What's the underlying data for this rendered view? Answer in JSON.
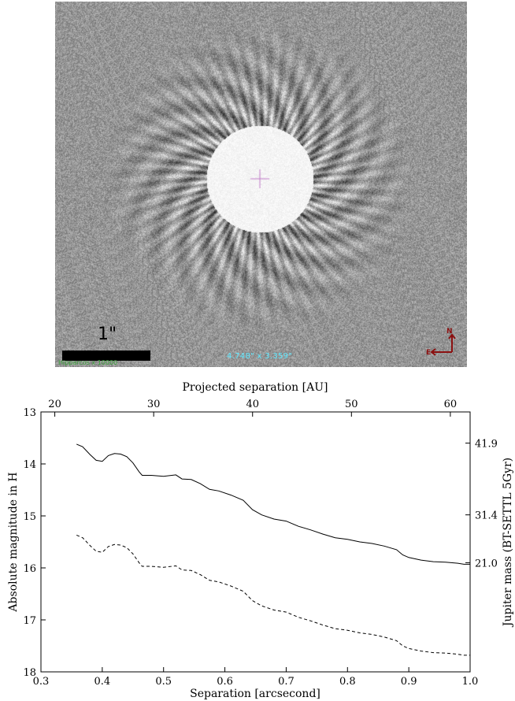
{
  "image_panel": {
    "scale_label": "1\"",
    "coordinate_readout": "4.748\" x 3.359\"",
    "faint_label": "Hipparcos x 10000",
    "compass": {
      "north": "N",
      "east": "E"
    }
  },
  "chart_data": {
    "type": "line",
    "xlabel": "Separation [arcsecond]",
    "ylabel": "Absolute magnitude in H",
    "top_xlabel": "Projected separation [AU]",
    "right_ylabel": "Jupiter mass (BT-SETTL 5Gyr)",
    "xlim": [
      0.3,
      1.0
    ],
    "ylim": [
      18,
      13
    ],
    "x_ticks": [
      "0.3",
      "0.4",
      "0.5",
      "0.6",
      "0.7",
      "0.8",
      "0.9",
      "1.0"
    ],
    "y_ticks": [
      "13",
      "14",
      "15",
      "16",
      "17",
      "18"
    ],
    "top_ticks": [
      {
        "au": 20,
        "label": "20"
      },
      {
        "au": 30,
        "label": "30"
      },
      {
        "au": 40,
        "label": "40"
      },
      {
        "au": 50,
        "label": "50"
      },
      {
        "au": 60,
        "label": "60"
      }
    ],
    "au_per_arcsec": 62.0,
    "right_ticks": [
      {
        "mag": 13.6,
        "label": "41.9"
      },
      {
        "mag": 14.98,
        "label": "31.4"
      },
      {
        "mag": 15.9,
        "label": "21.0"
      }
    ],
    "series": [
      {
        "style": "solid",
        "x": [
          0.358,
          0.368,
          0.38,
          0.39,
          0.4,
          0.41,
          0.42,
          0.43,
          0.44,
          0.45,
          0.46,
          0.465,
          0.48,
          0.5,
          0.52,
          0.53,
          0.545,
          0.56,
          0.575,
          0.59,
          0.61,
          0.63,
          0.645,
          0.66,
          0.68,
          0.7,
          0.72,
          0.74,
          0.76,
          0.78,
          0.8,
          0.82,
          0.84,
          0.86,
          0.88,
          0.89,
          0.9,
          0.92,
          0.94,
          0.96,
          0.98,
          0.99,
          1.0
        ],
        "y": [
          13.62,
          13.67,
          13.82,
          13.93,
          13.95,
          13.84,
          13.8,
          13.81,
          13.86,
          13.98,
          14.15,
          14.22,
          14.22,
          14.24,
          14.21,
          14.29,
          14.3,
          14.38,
          14.49,
          14.52,
          14.6,
          14.7,
          14.88,
          14.98,
          15.06,
          15.1,
          15.2,
          15.27,
          15.35,
          15.42,
          15.45,
          15.5,
          15.53,
          15.58,
          15.65,
          15.75,
          15.8,
          15.85,
          15.88,
          15.89,
          15.91,
          15.93,
          15.93
        ]
      },
      {
        "style": "dashed",
        "x": [
          0.358,
          0.368,
          0.38,
          0.39,
          0.4,
          0.41,
          0.42,
          0.43,
          0.44,
          0.45,
          0.46,
          0.465,
          0.48,
          0.5,
          0.52,
          0.53,
          0.545,
          0.56,
          0.575,
          0.59,
          0.61,
          0.63,
          0.645,
          0.66,
          0.68,
          0.7,
          0.72,
          0.74,
          0.76,
          0.78,
          0.8,
          0.82,
          0.84,
          0.86,
          0.88,
          0.89,
          0.9,
          0.92,
          0.94,
          0.96,
          0.98,
          0.99,
          1.0
        ],
        "y": [
          15.37,
          15.42,
          15.57,
          15.68,
          15.7,
          15.59,
          15.55,
          15.56,
          15.61,
          15.73,
          15.9,
          15.97,
          15.97,
          15.99,
          15.96,
          16.04,
          16.05,
          16.13,
          16.24,
          16.27,
          16.35,
          16.45,
          16.63,
          16.73,
          16.81,
          16.85,
          16.95,
          17.02,
          17.1,
          17.17,
          17.2,
          17.25,
          17.28,
          17.33,
          17.4,
          17.5,
          17.55,
          17.6,
          17.63,
          17.64,
          17.66,
          17.68,
          17.68
        ]
      }
    ]
  }
}
